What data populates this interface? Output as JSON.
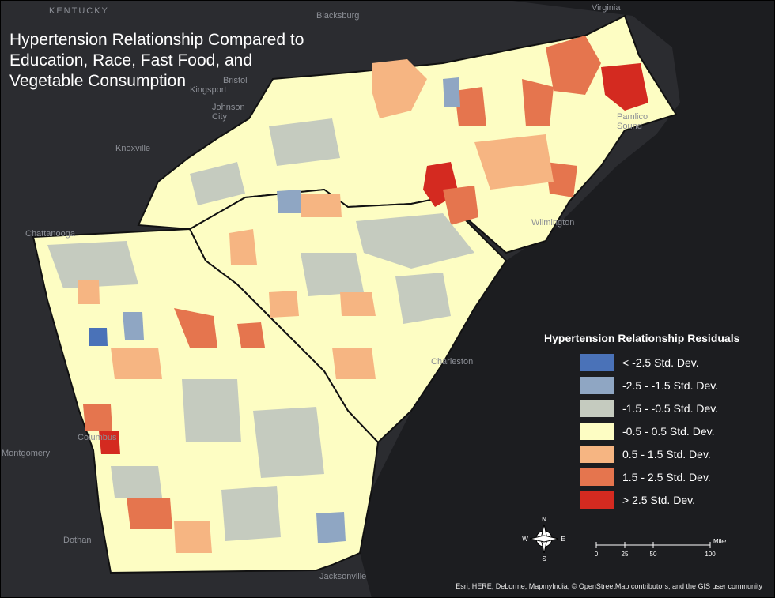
{
  "title": "Hypertension Relationship Compared to\nEducation, Race, Fast Food, and\nVegetable Consumption",
  "legend": {
    "title": "Hypertension Relationship Residuals",
    "classes": [
      {
        "label": "< -2.5 Std. Dev.",
        "color": "#4a72b8"
      },
      {
        "label": "-2.5 - -1.5 Std. Dev.",
        "color": "#8fa6c3"
      },
      {
        "label": "-1.5 - -0.5 Std. Dev.",
        "color": "#c5cbbf"
      },
      {
        "label": "-0.5 - 0.5 Std. Dev.",
        "color": "#fdfdc3"
      },
      {
        "label": "0.5 - 1.5 Std. Dev.",
        "color": "#f6b582"
      },
      {
        "label": "1.5 - 2.5 Std. Dev.",
        "color": "#e5754e"
      },
      {
        "label": "> 2.5 Std. Dev.",
        "color": "#d42a20"
      }
    ]
  },
  "cities": [
    "KENTUCKY",
    "Blacksburg",
    "Virginia",
    "Bristol",
    "Kingsport",
    "Johnson City",
    "Knoxville",
    "Chattanooga",
    "Pamlico Sound",
    "Wilmington",
    "Charleston",
    "Columbus",
    "Montgomery",
    "Dothan",
    "Jacksonville"
  ],
  "north_arrow": {
    "n": "N",
    "s": "S",
    "e": "E",
    "w": "W"
  },
  "scale_bar": {
    "ticks": [
      "0",
      "25",
      "50",
      "100"
    ],
    "unit": "Miles"
  },
  "attribution": "Esri, HERE, DeLorme, MapmyIndia, © OpenStreetMap contributors, and the GIS user community"
}
